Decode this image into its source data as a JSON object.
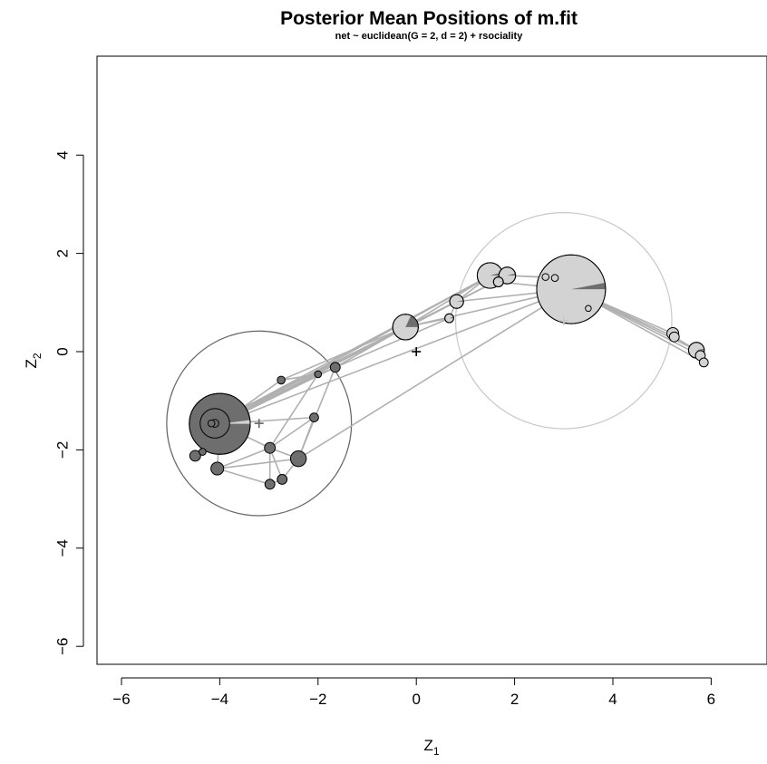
{
  "chart_data": {
    "type": "scatter",
    "title": "Posterior Mean Positions of m.fit",
    "subtitle": "net ~ euclidean(G = 2, d = 2) + rsociality",
    "xlabel": {
      "main": "Z",
      "sub": "1"
    },
    "ylabel": {
      "main": "Z",
      "sub": "2"
    },
    "xlim": [
      -6.6,
      7.0
    ],
    "ylim": [
      -6.4,
      5.8
    ],
    "xticks": [
      -6,
      -4,
      -2,
      0,
      2,
      4,
      6
    ],
    "yticks": [
      -6,
      -4,
      -2,
      0,
      2,
      4
    ],
    "grid": false,
    "colors": {
      "group1": "#6e6e6e",
      "group2": "#d3d3d3",
      "edge": "#b0b0b0",
      "circle1": "#666666",
      "circle2": "#c8c8c8",
      "node_outline": "#000000"
    },
    "clusters": [
      {
        "name": "1",
        "center": [
          -3.2,
          -1.46
        ],
        "radius": 1.88
      },
      {
        "name": "2",
        "center": [
          3.0,
          0.63
        ],
        "radius": 2.2
      }
    ],
    "overall_center": [
      0.0,
      0.0
    ],
    "nodes": [
      {
        "x": -4.0,
        "y": -1.47,
        "r": 0.62,
        "g": 1,
        "p2": 0.02
      },
      {
        "x": -4.1,
        "y": -1.46,
        "r": 0.3,
        "g": 1,
        "p2": 0.0
      },
      {
        "x": -4.1,
        "y": -1.46,
        "r": 0.08,
        "g": 1,
        "p2": 0.0
      },
      {
        "x": -4.17,
        "y": -1.46,
        "r": 0.07,
        "g": 1,
        "p2": 0.0
      },
      {
        "x": -2.75,
        "y": -0.58,
        "r": 0.08,
        "g": 1,
        "p2": 0.0
      },
      {
        "x": -2.0,
        "y": -0.46,
        "r": 0.07,
        "g": 1,
        "p2": 0.0
      },
      {
        "x": -1.65,
        "y": -0.32,
        "r": 0.1,
        "g": 1,
        "p2": 0.0
      },
      {
        "x": -2.08,
        "y": -1.34,
        "r": 0.09,
        "g": 1,
        "p2": 0.0
      },
      {
        "x": -2.98,
        "y": -1.96,
        "r": 0.11,
        "g": 1,
        "p2": 0.0
      },
      {
        "x": -2.4,
        "y": -2.18,
        "r": 0.16,
        "g": 1,
        "p2": 0.0
      },
      {
        "x": -4.5,
        "y": -2.12,
        "r": 0.11,
        "g": 1,
        "p2": 0.0
      },
      {
        "x": -4.35,
        "y": -2.04,
        "r": 0.07,
        "g": 1,
        "p2": 0.0
      },
      {
        "x": -4.05,
        "y": -2.38,
        "r": 0.13,
        "g": 1,
        "p2": 0.0
      },
      {
        "x": -2.73,
        "y": -2.6,
        "r": 0.1,
        "g": 1,
        "p2": 0.0
      },
      {
        "x": -2.98,
        "y": -2.7,
        "r": 0.1,
        "g": 1,
        "p2": 0.0
      },
      {
        "x": -0.22,
        "y": 0.5,
        "r": 0.26,
        "g": 2,
        "p2": 0.82
      },
      {
        "x": 0.67,
        "y": 0.68,
        "r": 0.09,
        "g": 2,
        "p2": 0.95
      },
      {
        "x": 0.82,
        "y": 1.02,
        "r": 0.14,
        "g": 2,
        "p2": 0.97
      },
      {
        "x": 1.5,
        "y": 1.55,
        "r": 0.26,
        "g": 2,
        "p2": 0.96
      },
      {
        "x": 1.85,
        "y": 1.55,
        "r": 0.17,
        "g": 2,
        "p2": 0.96
      },
      {
        "x": 1.67,
        "y": 1.42,
        "r": 0.1,
        "g": 2,
        "p2": 0.98
      },
      {
        "x": 2.63,
        "y": 1.52,
        "r": 0.07,
        "g": 2,
        "p2": 1.0
      },
      {
        "x": 2.82,
        "y": 1.5,
        "r": 0.07,
        "g": 2,
        "p2": 1.0
      },
      {
        "x": 3.15,
        "y": 1.27,
        "r": 0.7,
        "g": 2,
        "p2": 0.97
      },
      {
        "x": 3.5,
        "y": 0.88,
        "r": 0.06,
        "g": 2,
        "p2": 1.0
      },
      {
        "x": 5.22,
        "y": 0.37,
        "r": 0.12,
        "g": 2,
        "p2": 1.0
      },
      {
        "x": 5.25,
        "y": 0.3,
        "r": 0.1,
        "g": 2,
        "p2": 1.0
      },
      {
        "x": 5.7,
        "y": 0.03,
        "r": 0.16,
        "g": 2,
        "p2": 0.97
      },
      {
        "x": 5.78,
        "y": -0.08,
        "r": 0.1,
        "g": 2,
        "p2": 1.0
      },
      {
        "x": 5.85,
        "y": -0.22,
        "r": 0.09,
        "g": 2,
        "p2": 1.0
      }
    ],
    "edges": [
      [
        0,
        15
      ],
      [
        0,
        17
      ],
      [
        0,
        18
      ],
      [
        0,
        19
      ],
      [
        0,
        6
      ],
      [
        0,
        5
      ],
      [
        0,
        4
      ],
      [
        0,
        23
      ],
      [
        1,
        15
      ],
      [
        1,
        18
      ],
      [
        3,
        15
      ],
      [
        4,
        5
      ],
      [
        4,
        15
      ],
      [
        5,
        6
      ],
      [
        6,
        15
      ],
      [
        6,
        16
      ],
      [
        0,
        7
      ],
      [
        7,
        8
      ],
      [
        7,
        9
      ],
      [
        8,
        9
      ],
      [
        8,
        12
      ],
      [
        8,
        13
      ],
      [
        9,
        13
      ],
      [
        9,
        6
      ],
      [
        0,
        8
      ],
      [
        0,
        12
      ],
      [
        0,
        10
      ],
      [
        10,
        11
      ],
      [
        12,
        9
      ],
      [
        12,
        14
      ],
      [
        13,
        14
      ],
      [
        14,
        8
      ],
      [
        8,
        5
      ],
      [
        9,
        23
      ],
      [
        15,
        16
      ],
      [
        15,
        17
      ],
      [
        15,
        18
      ],
      [
        15,
        19
      ],
      [
        15,
        23
      ],
      [
        16,
        17
      ],
      [
        17,
        18
      ],
      [
        18,
        19
      ],
      [
        18,
        20
      ],
      [
        19,
        21
      ],
      [
        19,
        22
      ],
      [
        17,
        23
      ],
      [
        20,
        23
      ],
      [
        21,
        23
      ],
      [
        22,
        23
      ],
      [
        23,
        24
      ],
      [
        23,
        25
      ],
      [
        23,
        26
      ],
      [
        23,
        27
      ],
      [
        23,
        28
      ],
      [
        23,
        29
      ],
      [
        25,
        26
      ],
      [
        26,
        27
      ],
      [
        27,
        28
      ],
      [
        28,
        29
      ]
    ]
  }
}
